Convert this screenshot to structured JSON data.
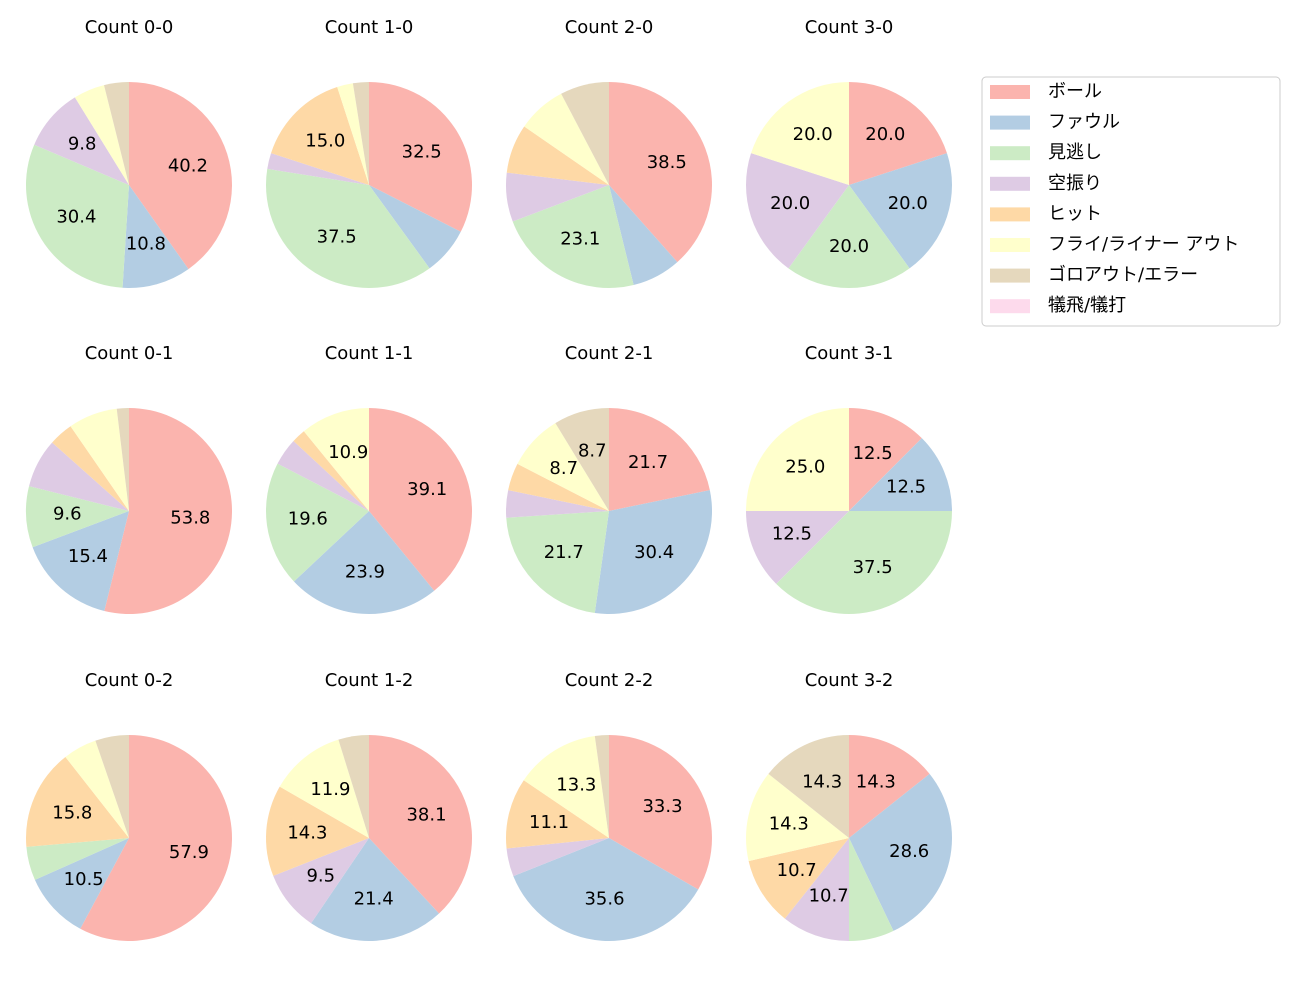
{
  "chart_data": [
    {
      "type": "pie",
      "title": "Count 0-0",
      "values": [
        40.2,
        10.8,
        30.4,
        9.8,
        0,
        4.9,
        3.9,
        0
      ],
      "value_labels": [
        "40.2",
        "10.8",
        "30.4",
        "9.8",
        null,
        null,
        null,
        null
      ]
    },
    {
      "type": "pie",
      "title": "Count 1-0",
      "values": [
        32.5,
        7.5,
        37.5,
        2.5,
        15.0,
        2.5,
        2.5,
        0
      ],
      "value_labels": [
        "32.5",
        null,
        "37.5",
        null,
        "15.0",
        null,
        null,
        null
      ]
    },
    {
      "type": "pie",
      "title": "Count 2-0",
      "values": [
        38.5,
        7.7,
        23.1,
        7.7,
        7.7,
        7.7,
        7.7,
        0
      ],
      "value_labels": [
        "38.5",
        null,
        "23.1",
        null,
        null,
        null,
        null,
        null
      ]
    },
    {
      "type": "pie",
      "title": "Count 3-0",
      "values": [
        20.0,
        20.0,
        20.0,
        20.0,
        0,
        20.0,
        0,
        0
      ],
      "value_labels": [
        "20.0",
        "20.0",
        "20.0",
        "20.0",
        null,
        "20.0",
        null,
        null
      ]
    },
    {
      "type": "pie",
      "title": "Count 0-1",
      "values": [
        53.8,
        15.4,
        9.6,
        7.7,
        3.8,
        7.7,
        1.9,
        0
      ],
      "value_labels": [
        "53.8",
        "15.4",
        "9.6",
        null,
        null,
        null,
        null,
        null
      ]
    },
    {
      "type": "pie",
      "title": "Count 1-1",
      "values": [
        39.1,
        23.9,
        19.6,
        4.3,
        2.2,
        10.9,
        0,
        0
      ],
      "value_labels": [
        "39.1",
        "23.9",
        "19.6",
        null,
        null,
        "10.9",
        null,
        null
      ]
    },
    {
      "type": "pie",
      "title": "Count 2-1",
      "values": [
        21.7,
        30.4,
        21.7,
        4.3,
        4.3,
        8.7,
        8.7,
        0
      ],
      "value_labels": [
        "21.7",
        "30.4",
        "21.7",
        null,
        null,
        "8.7",
        "8.7",
        null
      ]
    },
    {
      "type": "pie",
      "title": "Count 3-1",
      "values": [
        12.5,
        12.5,
        37.5,
        12.5,
        0,
        25.0,
        0,
        0
      ],
      "value_labels": [
        "12.5",
        "12.5",
        "37.5",
        "12.5",
        null,
        "25.0",
        null,
        null
      ]
    },
    {
      "type": "pie",
      "title": "Count 0-2",
      "values": [
        57.9,
        10.5,
        5.3,
        0,
        15.8,
        5.3,
        5.3,
        0
      ],
      "value_labels": [
        "57.9",
        "10.5",
        null,
        null,
        "15.8",
        null,
        null,
        null
      ]
    },
    {
      "type": "pie",
      "title": "Count 1-2",
      "values": [
        38.1,
        21.4,
        0,
        9.5,
        14.3,
        11.9,
        4.8,
        0
      ],
      "value_labels": [
        "38.1",
        "21.4",
        null,
        "9.5",
        "14.3",
        "11.9",
        null,
        null
      ]
    },
    {
      "type": "pie",
      "title": "Count 2-2",
      "values": [
        33.3,
        35.6,
        0,
        4.4,
        11.1,
        13.3,
        2.2,
        0
      ],
      "value_labels": [
        "33.3",
        "35.6",
        null,
        null,
        "11.1",
        "13.3",
        null,
        null
      ]
    },
    {
      "type": "pie",
      "title": "Count 3-2",
      "values": [
        14.3,
        28.6,
        7.1,
        10.7,
        10.7,
        14.3,
        14.3,
        0
      ],
      "value_labels": [
        "14.3",
        "28.6",
        null,
        "10.7",
        "10.7",
        "14.3",
        "14.3",
        null
      ]
    }
  ],
  "legend": {
    "position": "upper right",
    "labels": [
      "ボール",
      "ファウル",
      "見逃し",
      "空振り",
      "ヒット",
      "フライ/ライナー アウト",
      "ゴロアウト/エラー",
      "犠飛/犠打"
    ],
    "colors": [
      "#fbb4ae",
      "#b3cde3",
      "#ccebc5",
      "#decbe4",
      "#fed9a6",
      "#ffffcc",
      "#e5d8bd",
      "#fddaec"
    ]
  }
}
